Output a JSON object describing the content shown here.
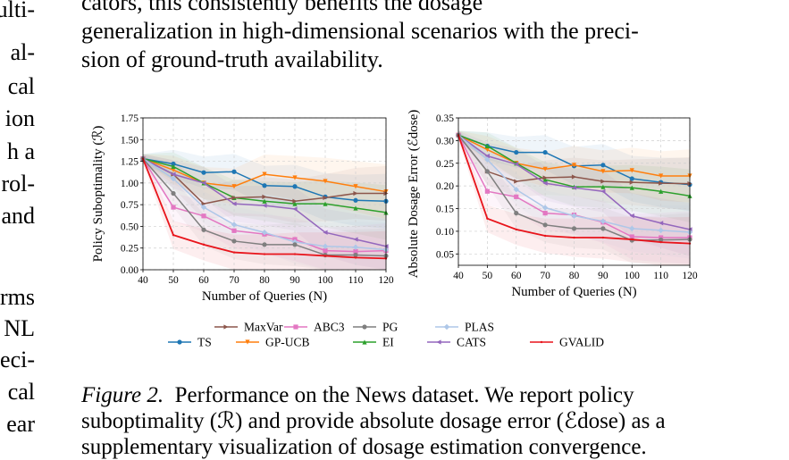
{
  "left_column": [
    "ulti-",
    "al-",
    "cal",
    "ion",
    "h a",
    "rol-",
    "and",
    "rms",
    "NL",
    "eci-",
    "cal",
    "ear"
  ],
  "top_text": {
    "line1": "cators, this consistently benefits the dosage",
    "line2": "generalization in high-dimensional scenarios with the preci-",
    "line3": "sion of ground-truth availability."
  },
  "caption": {
    "label": "Figure 2.",
    "line1": "Performance on the News dataset. We report policy",
    "line2": "suboptimality (ℛ) and provide absolute dosage error (ℰdose) as a",
    "line3": "supplementary visualization of dosage estimation convergence."
  },
  "legend": [
    {
      "name": "MaxVar",
      "color": "#8c564b"
    },
    {
      "name": "ABC3",
      "color": "#e377c2"
    },
    {
      "name": "PG",
      "color": "#7f7f7f"
    },
    {
      "name": "PLAS",
      "color": "#aec7e8"
    },
    {
      "name": "TS",
      "color": "#1f77b4"
    },
    {
      "name": "GP-UCB",
      "color": "#ff7f0e"
    },
    {
      "name": "EI",
      "color": "#2ca02c"
    },
    {
      "name": "CATS",
      "color": "#9467bd"
    },
    {
      "name": "GVALID",
      "color": "#e8141b"
    }
  ],
  "chart_data": [
    {
      "type": "line",
      "xlabel": "Number of Queries (N)",
      "ylabel": "Policy Suboptimality (ℛ)",
      "x": [
        40,
        50,
        60,
        70,
        80,
        90,
        100,
        110,
        120
      ],
      "xlim": [
        40,
        120
      ],
      "ylim": [
        0,
        1.75
      ],
      "xticks": [
        "40",
        "50",
        "60",
        "70",
        "80",
        "90",
        "100",
        "110",
        "120"
      ],
      "yticks": [
        "0.00",
        "0.25",
        "0.50",
        "0.75",
        "1.00",
        "1.25",
        "1.50",
        "1.75"
      ],
      "grid": true,
      "series": [
        {
          "name": "TS",
          "values": [
            1.28,
            1.22,
            1.12,
            1.13,
            0.97,
            0.96,
            0.84,
            0.8,
            0.79
          ]
        },
        {
          "name": "GP-UCB",
          "values": [
            1.28,
            1.15,
            1.0,
            0.96,
            1.1,
            1.06,
            1.02,
            0.96,
            0.9
          ]
        },
        {
          "name": "EI",
          "values": [
            1.28,
            1.19,
            1.0,
            0.83,
            0.79,
            0.76,
            0.76,
            0.71,
            0.66
          ]
        },
        {
          "name": "MaxVar",
          "values": [
            1.28,
            1.1,
            0.76,
            0.83,
            0.84,
            0.79,
            0.83,
            0.88,
            0.88
          ]
        },
        {
          "name": "CATS",
          "values": [
            1.28,
            1.1,
            1.0,
            0.76,
            0.74,
            0.7,
            0.43,
            0.35,
            0.27
          ]
        },
        {
          "name": "ABC3",
          "values": [
            1.28,
            0.72,
            0.62,
            0.45,
            0.41,
            0.35,
            0.22,
            0.21,
            0.22
          ]
        },
        {
          "name": "PLAS",
          "values": [
            1.28,
            1.05,
            0.72,
            0.52,
            0.43,
            0.32,
            0.27,
            0.26,
            0.23
          ]
        },
        {
          "name": "PG",
          "values": [
            1.28,
            0.88,
            0.46,
            0.33,
            0.29,
            0.29,
            0.17,
            0.17,
            0.16
          ]
        },
        {
          "name": "GVALID",
          "values": [
            1.28,
            0.4,
            0.29,
            0.2,
            0.18,
            0.18,
            0.16,
            0.14,
            0.13
          ]
        }
      ]
    },
    {
      "type": "line",
      "xlabel": "Number of Queries (N)",
      "ylabel": "Absolute Dosage Error (ℰdose)",
      "x": [
        40,
        50,
        60,
        70,
        80,
        90,
        100,
        110,
        120
      ],
      "xlim": [
        40,
        120
      ],
      "ylim": [
        0.025,
        0.35
      ],
      "xticks": [
        "40",
        "50",
        "60",
        "70",
        "80",
        "90",
        "100",
        "110",
        "120"
      ],
      "yticks": [
        "0.05",
        "0.10",
        "0.15",
        "0.20",
        "0.25",
        "0.30",
        "0.35"
      ],
      "grid": true,
      "series": [
        {
          "name": "TS",
          "values": [
            0.312,
            0.288,
            0.274,
            0.274,
            0.244,
            0.246,
            0.216,
            0.208,
            0.203
          ]
        },
        {
          "name": "GP-UCB",
          "values": [
            0.312,
            0.28,
            0.25,
            0.237,
            0.246,
            0.232,
            0.234,
            0.222,
            0.222
          ]
        },
        {
          "name": "EI",
          "values": [
            0.312,
            0.288,
            0.25,
            0.214,
            0.198,
            0.198,
            0.196,
            0.188,
            0.178
          ]
        },
        {
          "name": "MaxVar",
          "values": [
            0.312,
            0.232,
            0.21,
            0.218,
            0.22,
            0.21,
            0.208,
            0.206,
            0.205
          ]
        },
        {
          "name": "CATS",
          "values": [
            0.312,
            0.266,
            0.248,
            0.206,
            0.196,
            0.188,
            0.134,
            0.118,
            0.104
          ]
        },
        {
          "name": "ABC3",
          "values": [
            0.312,
            0.188,
            0.176,
            0.14,
            0.136,
            0.12,
            0.088,
            0.086,
            0.086
          ]
        },
        {
          "name": "PLAS",
          "values": [
            0.312,
            0.258,
            0.192,
            0.152,
            0.134,
            0.122,
            0.106,
            0.102,
            0.098
          ]
        },
        {
          "name": "PG",
          "values": [
            0.312,
            0.232,
            0.14,
            0.114,
            0.106,
            0.106,
            0.08,
            0.081,
            0.082
          ]
        },
        {
          "name": "GVALID",
          "values": [
            0.312,
            0.128,
            0.104,
            0.09,
            0.086,
            0.086,
            0.082,
            0.076,
            0.073
          ]
        }
      ]
    }
  ]
}
